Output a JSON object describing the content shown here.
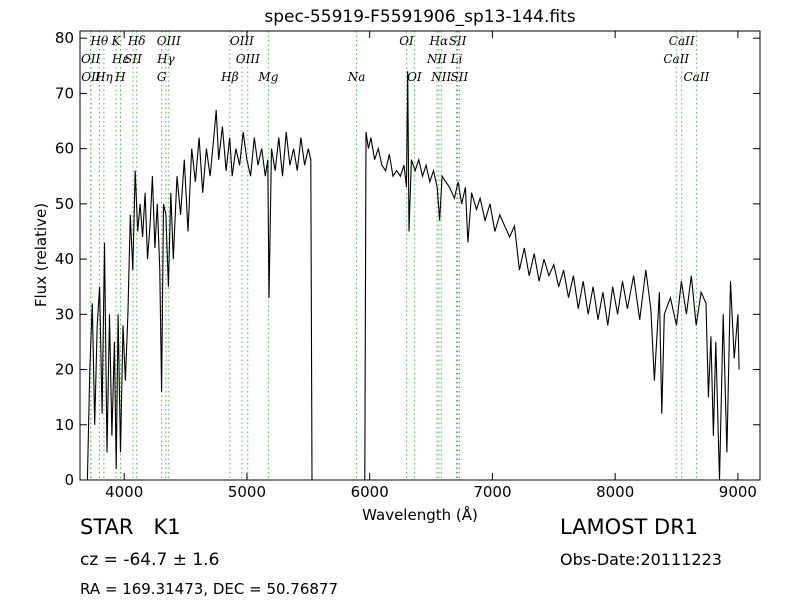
{
  "chart_data": {
    "type": "line",
    "title": "spec-55919-F5591906_sp13-144.fits",
    "x_label": "Wavelength (Å)",
    "y_label": "Flux (relative)",
    "xlim": [
      3640,
      9180
    ],
    "ylim": [
      0,
      81.3
    ],
    "xticks": [
      4000,
      5000,
      6000,
      7000,
      8000,
      9000
    ],
    "yticks": [
      0,
      10,
      20,
      30,
      40,
      50,
      60,
      70,
      80
    ],
    "x": [
      3700,
      3720,
      3740,
      3760,
      3780,
      3800,
      3820,
      3840,
      3860,
      3880,
      3900,
      3920,
      3935,
      3950,
      3970,
      3990,
      4010,
      4030,
      4050,
      4070,
      4090,
      4110,
      4130,
      4150,
      4170,
      4190,
      4210,
      4230,
      4250,
      4270,
      4290,
      4305,
      4320,
      4340,
      4360,
      4380,
      4400,
      4430,
      4460,
      4490,
      4520,
      4550,
      4580,
      4610,
      4640,
      4670,
      4700,
      4730,
      4750,
      4770,
      4800,
      4830,
      4860,
      4880,
      4910,
      4940,
      4970,
      5000,
      5030,
      5060,
      5090,
      5120,
      5150,
      5170,
      5180,
      5200,
      5230,
      5260,
      5290,
      5320,
      5350,
      5380,
      5410,
      5440,
      5470,
      5500,
      5520,
      5530,
      5960,
      5970,
      5990,
      6010,
      6040,
      6070,
      6100,
      6130,
      6160,
      6190,
      6220,
      6250,
      6280,
      6300,
      6310,
      6320,
      6340,
      6370,
      6400,
      6430,
      6460,
      6490,
      6520,
      6550,
      6570,
      6590,
      6620,
      6650,
      6690,
      6720,
      6750,
      6780,
      6800,
      6830,
      6870,
      6900,
      6940,
      6980,
      7020,
      7060,
      7100,
      7140,
      7180,
      7220,
      7260,
      7300,
      7340,
      7380,
      7420,
      7460,
      7500,
      7540,
      7580,
      7620,
      7660,
      7700,
      7740,
      7780,
      7820,
      7860,
      7900,
      7940,
      7980,
      8020,
      8060,
      8100,
      8150,
      8200,
      8250,
      8290,
      8320,
      8360,
      8380,
      8400,
      8450,
      8500,
      8540,
      8580,
      8620,
      8660,
      8700,
      8740,
      8760,
      8780,
      8800,
      8820,
      8850,
      8880,
      8910,
      8940,
      8970,
      9000,
      9010
    ],
    "series": [
      {
        "color": "#000000",
        "values": [
          0,
          20,
          32,
          10,
          28,
          35,
          12,
          43,
          5,
          30,
          8,
          25,
          2,
          30,
          5,
          28,
          18,
          30,
          48,
          38,
          56,
          45,
          50,
          44,
          52,
          40,
          46,
          55,
          42,
          50,
          38,
          16,
          50,
          48,
          35,
          52,
          40,
          55,
          48,
          58,
          45,
          60,
          54,
          62,
          52,
          60,
          55,
          62,
          67,
          58,
          64,
          56,
          62,
          55,
          60,
          57,
          63,
          58,
          55,
          62,
          57,
          60,
          55,
          58,
          33,
          60,
          56,
          62,
          55,
          63,
          57,
          60,
          56,
          62,
          57,
          60,
          58,
          0,
          0,
          63,
          60,
          62,
          58,
          60,
          57,
          56,
          59,
          55,
          56,
          55,
          57,
          53,
          74,
          45,
          58,
          56,
          58,
          55,
          57,
          54,
          56,
          53,
          47,
          55,
          54,
          53,
          51,
          54,
          50,
          53,
          43,
          52,
          49,
          51,
          47,
          50,
          45,
          48,
          46,
          44,
          46,
          38,
          42,
          37,
          41,
          36,
          40,
          37,
          39,
          35,
          38,
          33,
          37,
          31,
          36,
          30,
          35,
          29,
          34,
          28,
          35,
          30,
          36,
          31,
          37,
          29,
          38,
          31,
          18,
          34,
          12,
          30,
          33,
          28,
          36,
          30,
          37,
          28,
          34,
          32,
          15,
          26,
          8,
          25,
          0,
          30,
          5,
          36,
          22,
          30,
          20
        ]
      }
    ],
    "lines_color": "#44bb44",
    "lines": [
      {
        "label": "Hθ",
        "wavelength": 3798
      },
      {
        "label": "K",
        "wavelength": 3934
      },
      {
        "label": "Hδ",
        "wavelength": 4102
      },
      {
        "label": "OIII",
        "wavelength": 4363
      },
      {
        "label": "OIII",
        "wavelength": 4959
      },
      {
        "label": "OI",
        "wavelength": 6300
      },
      {
        "label": "Hα",
        "wavelength": 6563
      },
      {
        "label": "SII",
        "wavelength": 6717
      },
      {
        "label": "CaII",
        "wavelength": 8542
      },
      {
        "label": "OII",
        "wavelength": 3727
      },
      {
        "label": "Hε",
        "wavelength": 3970
      },
      {
        "label": "SII",
        "wavelength": 4072
      },
      {
        "label": "Hγ",
        "wavelength": 4340
      },
      {
        "label": "OIII",
        "wavelength": 5007
      },
      {
        "label": "NII",
        "wavelength": 6548
      },
      {
        "label": "Li",
        "wavelength": 6708
      },
      {
        "label": "CaII",
        "wavelength": 8498
      },
      {
        "label": "OII",
        "wavelength": 3729
      },
      {
        "label": "Hη",
        "wavelength": 3835
      },
      {
        "label": "H",
        "wavelength": 3969
      },
      {
        "label": "G",
        "wavelength": 4305
      },
      {
        "label": "Hβ",
        "wavelength": 4861
      },
      {
        "label": "Mg",
        "wavelength": 5175
      },
      {
        "label": "Na",
        "wavelength": 5893
      },
      {
        "label": "OI",
        "wavelength": 6364
      },
      {
        "label": "NII",
        "wavelength": 6583
      },
      {
        "label": "SII",
        "wavelength": 6731
      },
      {
        "label": "CaII",
        "wavelength": 8662
      }
    ]
  },
  "footer": {
    "class": "STAR   K1",
    "redshift": "cz = -64.7 ± 1.6",
    "coords": "RA = 169.31473, DEC = 50.76877",
    "survey": "LAMOST DR1",
    "obs_date": "Obs-Date:20111223"
  }
}
